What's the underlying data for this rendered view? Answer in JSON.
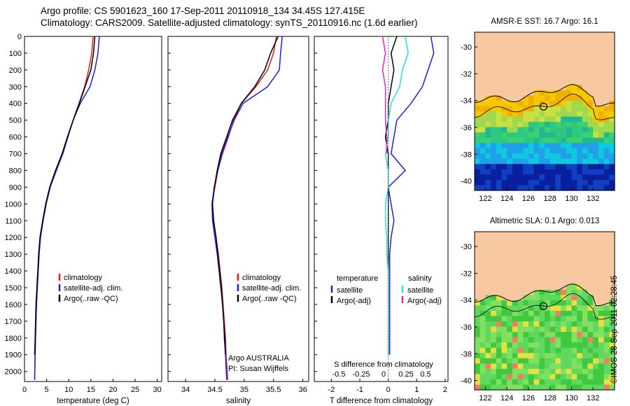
{
  "header": {
    "line1": "Argo profile: CS 5901623_160 17-Sep-2011 20110918_134 34.45S 127.415E",
    "line2": "Climatology: CARS2009. Satellite-adjusted climatology: synTS_20110916.nc (1.6d earlier)"
  },
  "credit": "©IMOS 28-Sep-2011 02:28:45",
  "colors": {
    "climatology": "#e41a1c",
    "satellite": "#1f1fdc",
    "argo": "#000000",
    "satellite_diff_S": "#20e0e0",
    "argo_diff_S": "#dd22dd",
    "land": "#f8c8a0"
  },
  "chart_data": [
    {
      "type": "line",
      "xlabel": "temperature (deg C)",
      "ylabel": "",
      "xlim": [
        0,
        31
      ],
      "ylim": [
        2060,
        0
      ],
      "xticks": [
        "0",
        "5",
        "10",
        "15",
        "20",
        "25",
        "30"
      ],
      "yticks": [
        "0",
        "100",
        "200",
        "300",
        "400",
        "500",
        "600",
        "700",
        "800",
        "900",
        "1000",
        "1100",
        "1200",
        "1300",
        "1400",
        "1500",
        "1600",
        "1700",
        "1800",
        "1900",
        "2000"
      ],
      "legend": {
        "position": "center-right",
        "entries": [
          "climatology",
          "satellite-adj. clim.",
          "Argo(..raw -QC)"
        ]
      },
      "series": [
        {
          "name": "climatology",
          "color": "#e41a1c",
          "x": [
            15.5,
            15.2,
            14.5,
            13.6,
            12.3,
            11.0,
            9.8,
            8.7,
            7.2,
            5.8,
            4.9,
            4.2,
            3.6,
            3.3,
            3.1,
            2.9,
            2.7,
            2.6,
            2.5,
            2.4,
            2.3
          ],
          "y": [
            0,
            100,
            200,
            300,
            400,
            500,
            600,
            700,
            800,
            900,
            1000,
            1100,
            1200,
            1300,
            1400,
            1500,
            1600,
            1700,
            1800,
            1900,
            2050
          ]
        },
        {
          "name": "satellite-adj. clim.",
          "color": "#1f1fdc",
          "x": [
            16.9,
            16.6,
            15.9,
            14.8,
            12.6,
            11.0,
            9.8,
            8.6,
            7.2,
            5.8,
            4.9,
            4.2,
            3.6,
            3.3,
            3.1,
            2.9,
            2.7,
            2.6,
            2.5,
            2.4,
            2.3
          ],
          "y": [
            0,
            100,
            200,
            300,
            400,
            500,
            600,
            700,
            800,
            900,
            1000,
            1100,
            1200,
            1300,
            1400,
            1500,
            1600,
            1700,
            1800,
            1900,
            2050
          ]
        },
        {
          "name": "Argo(..raw -QC)",
          "color": "#000000",
          "x": [
            15.9,
            15.6,
            15.0,
            13.7,
            12.4,
            11.0,
            9.7,
            8.5,
            7.0,
            5.7,
            4.8,
            4.1,
            3.5,
            3.2,
            3.0,
            2.8,
            2.6,
            2.5,
            2.4,
            2.3
          ],
          "y": [
            0,
            100,
            200,
            300,
            400,
            500,
            600,
            700,
            800,
            900,
            1000,
            1100,
            1200,
            1300,
            1400,
            1500,
            1600,
            1700,
            1800,
            1900
          ]
        }
      ]
    },
    {
      "type": "line",
      "xlabel": "salinity",
      "xlim": [
        33.7,
        36.1
      ],
      "ylim": [
        2060,
        0
      ],
      "xticks": [
        "34",
        "34.5",
        "35",
        "35.5",
        "36"
      ],
      "legend": {
        "position": "center-right",
        "entries": [
          "climatology",
          "satellite-adj. clim.",
          "Argo(..raw -QC)"
        ]
      },
      "annotation": [
        "Argo AUSTRALIA",
        "PI: Susan Wijffels"
      ],
      "series": [
        {
          "name": "climatology",
          "color": "#e41a1c",
          "x": [
            35.55,
            35.5,
            35.4,
            35.2,
            34.95,
            34.82,
            34.73,
            34.63,
            34.55,
            34.5,
            34.45,
            34.47,
            34.52,
            34.56,
            34.59,
            34.62,
            34.64,
            34.66,
            34.68,
            34.69,
            34.72
          ],
          "y": [
            0,
            100,
            200,
            300,
            400,
            500,
            600,
            700,
            800,
            900,
            1000,
            1100,
            1200,
            1300,
            1400,
            1500,
            1600,
            1700,
            1800,
            1900,
            2050
          ]
        },
        {
          "name": "satellite-adj. clim.",
          "color": "#1f1fdc",
          "x": [
            35.65,
            35.62,
            35.6,
            35.4,
            34.98,
            34.83,
            34.72,
            34.62,
            34.55,
            34.49,
            34.45,
            34.46,
            34.5,
            34.54,
            34.57,
            34.6,
            34.63,
            34.65,
            34.66,
            34.68,
            34.7
          ],
          "y": [
            0,
            100,
            200,
            300,
            400,
            500,
            600,
            700,
            800,
            900,
            1000,
            1100,
            1200,
            1300,
            1400,
            1500,
            1600,
            1700,
            1800,
            1900,
            2050
          ]
        },
        {
          "name": "Argo(..raw -QC)",
          "color": "#000000",
          "x": [
            35.58,
            35.45,
            35.35,
            35.18,
            34.95,
            34.8,
            34.7,
            34.6,
            34.54,
            34.49,
            34.46,
            34.48,
            34.52,
            34.55,
            34.58,
            34.61,
            34.63,
            34.65,
            34.67,
            34.68
          ],
          "y": [
            0,
            100,
            200,
            300,
            400,
            500,
            600,
            700,
            800,
            900,
            1000,
            1100,
            1200,
            1300,
            1400,
            1500,
            1600,
            1700,
            1800,
            1900
          ]
        }
      ]
    },
    {
      "type": "line",
      "xlabel": "T difference from climatology",
      "xlabel_top": "S difference from climatology",
      "xlim": [
        -2.6,
        2.1
      ],
      "ylim": [
        2060,
        0
      ],
      "xticks": [
        "-2",
        "-1",
        "0",
        "1",
        "2"
      ],
      "xticks_S": [
        "-0.5",
        "-0.25",
        "0",
        "0.25",
        "0.5"
      ],
      "legend": {
        "position": "center",
        "headings": [
          "temperature",
          "salinity"
        ],
        "entries": [
          "satellite",
          "Argo(-adj)",
          "satellite",
          "Argo(-adj)"
        ]
      },
      "series": [
        {
          "name": "satellite",
          "color": "#1f1fdc",
          "x": [
            1.5,
            1.6,
            1.4,
            1.2,
            0.8,
            0.3,
            0.2,
            0.1,
            0.6,
            0.0,
            0.1,
            0.2,
            0.1,
            0.05,
            0.05,
            0.05,
            0.05,
            0.05,
            0.05,
            0.05
          ],
          "y": [
            0,
            100,
            200,
            300,
            400,
            500,
            600,
            700,
            800,
            900,
            1000,
            1100,
            1200,
            1300,
            1400,
            1500,
            1600,
            1700,
            1800,
            1900
          ]
        },
        {
          "name": "Argo(-adj)",
          "color": "#000000",
          "x": [
            0.3,
            0.1,
            0.2,
            0.1,
            0.0,
            0.0,
            -0.1,
            0.0,
            0.0,
            0.0,
            0.0,
            0.0,
            0.0,
            0.0,
            0.0,
            0.0,
            0.0,
            0.0,
            0.0,
            0.0
          ],
          "y": [
            0,
            100,
            200,
            300,
            400,
            500,
            600,
            700,
            800,
            900,
            1000,
            1100,
            1200,
            1300,
            1400,
            1500,
            1600,
            1700,
            1800,
            1900
          ]
        },
        {
          "name": "satellite",
          "color": "#20e0e0",
          "x": [
            0.6,
            0.7,
            0.5,
            0.4,
            0.1,
            0.0,
            0.0,
            -0.1,
            0.0,
            0.0,
            -0.1,
            -0.1,
            -0.05,
            -0.05,
            0.0,
            0.0,
            0.0,
            0.0,
            0.0,
            0.0
          ],
          "y": [
            0,
            100,
            200,
            300,
            400,
            500,
            600,
            700,
            800,
            900,
            1000,
            1100,
            1200,
            1300,
            1400,
            1500,
            1600,
            1700,
            1800,
            1900
          ]
        },
        {
          "name": "Argo(-adj)",
          "color": "#dd22dd",
          "x": [
            -0.2,
            -0.1,
            -0.2,
            -0.1,
            -0.1,
            -0.1,
            -0.05,
            -0.05
          ],
          "y": [
            0,
            100,
            200,
            300,
            400,
            500,
            600,
            700
          ]
        }
      ]
    },
    {
      "type": "heatmap",
      "title": "AMSR-E SST: 16.7  Argo: 16.1",
      "xlim": [
        121,
        134
      ],
      "ylim": [
        -40.7,
        -28.9
      ],
      "xticks": [
        "122",
        "124",
        "126",
        "128",
        "130",
        "132"
      ],
      "yticks": [
        "-30",
        "-32",
        "-34",
        "-36",
        "-38",
        "-40"
      ],
      "marker": {
        "lon": 127.4,
        "lat": -34.45
      }
    },
    {
      "type": "heatmap",
      "title": "Altimetric SLA: 0.1  Argo: 0.013",
      "xlim": [
        121,
        134
      ],
      "ylim": [
        -40.7,
        -28.9
      ],
      "xticks": [
        "122",
        "124",
        "126",
        "128",
        "130",
        "132"
      ],
      "yticks": [
        "-30",
        "-32",
        "-34",
        "-36",
        "-38",
        "-40"
      ],
      "marker": {
        "lon": 127.4,
        "lat": -34.45
      }
    }
  ]
}
